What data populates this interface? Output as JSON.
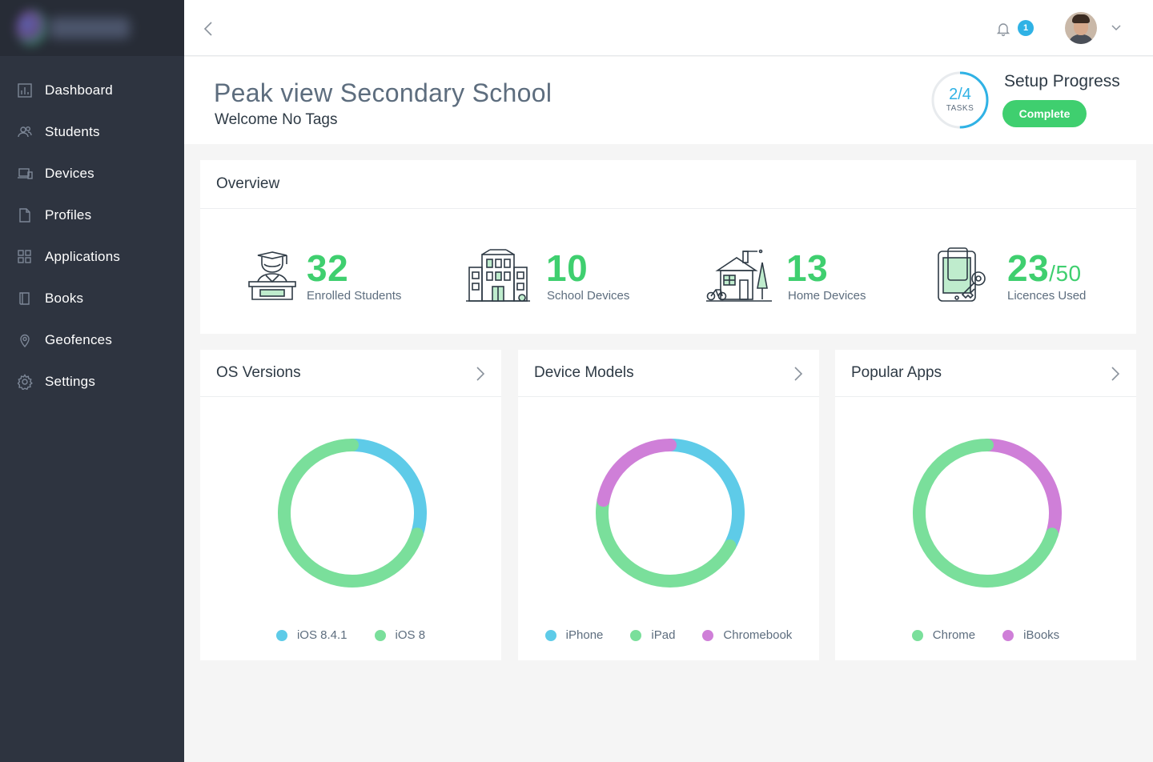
{
  "sidebar": {
    "items": [
      {
        "label": "Dashboard",
        "icon": "dashboard-icon"
      },
      {
        "label": "Students",
        "icon": "students-icon"
      },
      {
        "label": "Devices",
        "icon": "devices-icon"
      },
      {
        "label": "Profiles",
        "icon": "profiles-icon"
      },
      {
        "label": "Applications",
        "icon": "applications-icon"
      },
      {
        "label": "Books",
        "icon": "books-icon"
      },
      {
        "label": "Geofences",
        "icon": "geofences-icon"
      },
      {
        "label": "Settings",
        "icon": "settings-icon"
      }
    ]
  },
  "topbar": {
    "notification_count": "1"
  },
  "header": {
    "school_name": "Peak view Secondary School",
    "welcome": "Welcome No Tags",
    "progress": {
      "fraction": "2/4",
      "unit": "TASKS",
      "done": 2,
      "total": 4
    },
    "setup_title": "Setup Progress",
    "complete_label": "Complete"
  },
  "overview": {
    "title": "Overview",
    "stats": [
      {
        "value": "32",
        "label": "Enrolled Students",
        "icon": "graduate-icon"
      },
      {
        "value": "10",
        "label": "School Devices",
        "icon": "school-building-icon"
      },
      {
        "value": "13",
        "label": "Home Devices",
        "icon": "house-icon"
      },
      {
        "value": "23",
        "total": "/50",
        "label": "Licences Used",
        "icon": "tablet-key-icon"
      }
    ]
  },
  "colors": {
    "blue": "#5ecbe8",
    "green": "#7adf9b",
    "purple": "#cf7fd8",
    "accent_green": "#3fcf6f",
    "accent_blue": "#2fb2e5"
  },
  "chart_data": [
    {
      "type": "pie",
      "title": "OS Versions",
      "categories": [
        "iOS 8.4.1",
        "iOS 8"
      ],
      "values": [
        30,
        70
      ],
      "colors": [
        "#5ecbe8",
        "#7adf9b"
      ]
    },
    {
      "type": "pie",
      "title": "Device Models",
      "categories": [
        "iPhone",
        "iPad",
        "Chromebook"
      ],
      "values": [
        33,
        45,
        22
      ],
      "colors": [
        "#5ecbe8",
        "#7adf9b",
        "#cf7fd8"
      ]
    },
    {
      "type": "pie",
      "title": "Popular Apps",
      "categories": [
        "Chrome",
        "iBooks"
      ],
      "values": [
        70,
        30
      ],
      "colors": [
        "#7adf9b",
        "#cf7fd8"
      ],
      "order": [
        1,
        0
      ]
    }
  ]
}
